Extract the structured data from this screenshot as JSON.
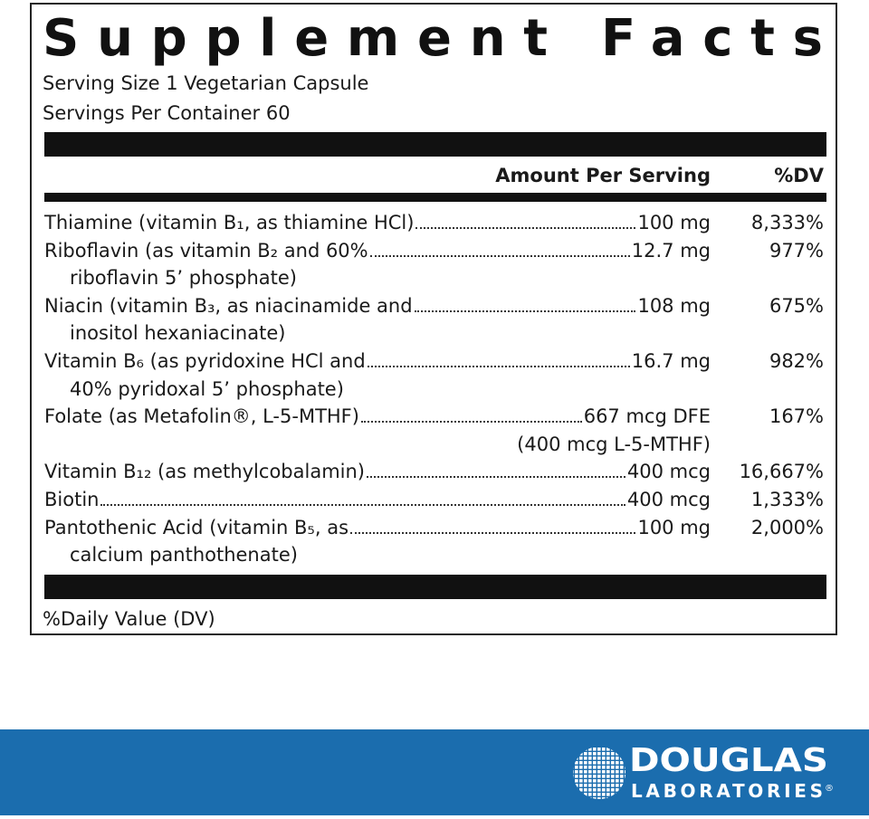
{
  "title": "Supplement Facts",
  "serving_size": "Serving Size 1 Vegetarian Capsule",
  "servings_per_container": "Servings Per Container 60",
  "header": {
    "amount": "Amount Per Serving",
    "dv": "%DV"
  },
  "rows": [
    {
      "name": [
        "Thiamine (vitamin B₁, as thiamine HCl)"
      ],
      "amount": [
        "100 mg"
      ],
      "dv": "8,333%"
    },
    {
      "name": [
        "Riboflavin (as vitamin B₂ and 60%",
        "riboflavin 5’ phosphate)"
      ],
      "amount": [
        "12.7 mg"
      ],
      "dv": "977%"
    },
    {
      "name": [
        "Niacin (vitamin B₃, as niacinamide and",
        "inositol hexaniacinate)"
      ],
      "amount": [
        "108 mg"
      ],
      "dv": "675%"
    },
    {
      "name": [
        "Vitamin B₆ (as pyridoxine HCl and",
        "40% pyridoxal 5’ phosphate)"
      ],
      "amount": [
        "16.7 mg"
      ],
      "dv": "982%"
    },
    {
      "name": [
        "Folate (as Metafolin®, L-5-MTHF)"
      ],
      "amount": [
        "667 mcg DFE",
        "(400 mcg L-5-MTHF)"
      ],
      "dv": "167%"
    },
    {
      "name": [
        "Vitamin B₁₂ (as methylcobalamin)"
      ],
      "amount": [
        "400 mcg"
      ],
      "dv": "16,667%"
    },
    {
      "name": [
        "Biotin"
      ],
      "amount": [
        "400 mcg"
      ],
      "dv": "1,333%"
    },
    {
      "name": [
        "Pantothenic Acid (vitamin B₅, as",
        "calcium panthothenate)"
      ],
      "amount": [
        "100 mg"
      ],
      "dv": "2,000%"
    }
  ],
  "footnote": "%Daily Value (DV)",
  "brand": {
    "name": "DOUGLAS",
    "sub": "LABORATORIES",
    "mark": "®"
  }
}
